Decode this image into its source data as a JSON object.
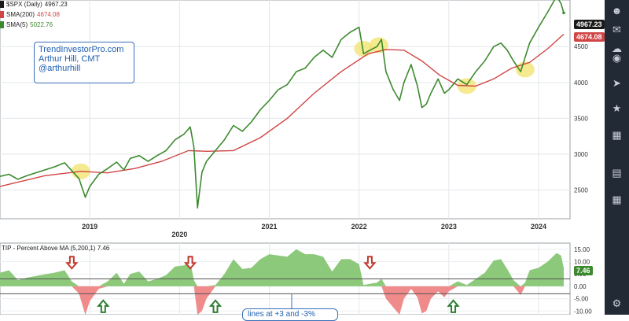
{
  "legend": {
    "price": {
      "label": "$SPX (Daily)",
      "value": "4967.23",
      "color": "#1a1a1a"
    },
    "sma200": {
      "label": "SMA(200)",
      "value": "4674.08",
      "color": "#d04545"
    },
    "sma5": {
      "label": "SMA(5)",
      "value": "5022.76",
      "color": "#3c8a2e"
    }
  },
  "watermark": {
    "line1": "TrendInvestorPro.com",
    "line2": "Arthur Hill, CMT",
    "line3": "@arthurhill"
  },
  "badges": {
    "price": "4967.23",
    "sma200": "4674.08",
    "indicator": "7.46"
  },
  "indicator": {
    "title": "TIP - Percent Above MA (5,200,1)",
    "value": "7.46",
    "annotation": "lines at +3 and -3%"
  },
  "colors": {
    "price_line": "#3c8a2e",
    "sma200_line": "#d04545",
    "positive_fill": "#8cc97a",
    "negative_fill": "#f08b8b",
    "highlight": "#f2e36b",
    "down_arrow": "#c0392b",
    "up_arrow": "#2e7d32",
    "sidebar": "#222a36"
  },
  "sidebar_icons": [
    "user-icon",
    "notification-icon",
    "cloud-icon",
    "globe-icon",
    "rocket-icon",
    "trophy-icon",
    "calendar-icon",
    "document-icon",
    "grid-icon",
    "gear-icon"
  ],
  "chart_data": [
    {
      "type": "line",
      "title": "$SPX (Daily)",
      "x_ticks": [
        "2019",
        "2020",
        "2021",
        "2022",
        "2023",
        "2024"
      ],
      "y_ticks": [
        2500,
        3000,
        3500,
        4000,
        4500
      ],
      "ylim": [
        2100,
        5150
      ],
      "xlim": [
        2018.0,
        2024.35
      ],
      "grid": true,
      "legend_position": "top-left",
      "series": [
        {
          "name": "$SPX (Daily)",
          "x": [
            2018.0,
            2018.1,
            2018.2,
            2018.3,
            2018.45,
            2018.6,
            2018.72,
            2018.8,
            2018.88,
            2018.95,
            2019.0,
            2019.1,
            2019.2,
            2019.3,
            2019.38,
            2019.45,
            2019.55,
            2019.65,
            2019.75,
            2019.85,
            2019.95,
            2020.05,
            2020.12,
            2020.16,
            2020.2,
            2020.25,
            2020.3,
            2020.4,
            2020.5,
            2020.6,
            2020.7,
            2020.8,
            2020.9,
            2021.0,
            2021.1,
            2021.2,
            2021.3,
            2021.4,
            2021.5,
            2021.6,
            2021.7,
            2021.8,
            2021.9,
            2022.0,
            2022.05,
            2022.12,
            2022.2,
            2022.25,
            2022.3,
            2022.38,
            2022.45,
            2022.5,
            2022.58,
            2022.65,
            2022.7,
            2022.75,
            2022.8,
            2022.88,
            2022.95,
            2023.0,
            2023.1,
            2023.2,
            2023.3,
            2023.4,
            2023.5,
            2023.58,
            2023.65,
            2023.72,
            2023.8,
            2023.85,
            2023.9,
            2024.0,
            2024.1,
            2024.2,
            2024.25,
            2024.28
          ],
          "values": [
            2690,
            2720,
            2650,
            2700,
            2760,
            2820,
            2880,
            2770,
            2660,
            2400,
            2550,
            2720,
            2800,
            2890,
            2780,
            2940,
            2980,
            2900,
            2980,
            3050,
            3200,
            3280,
            3380,
            3100,
            2250,
            2750,
            2900,
            3050,
            3200,
            3400,
            3320,
            3450,
            3620,
            3750,
            3900,
            3970,
            4150,
            4200,
            4350,
            4450,
            4350,
            4600,
            4700,
            4770,
            4400,
            4450,
            4500,
            4600,
            4150,
            3900,
            3750,
            4000,
            4250,
            3950,
            3650,
            3700,
            3850,
            4050,
            3850,
            3900,
            4050,
            3970,
            4150,
            4300,
            4500,
            4550,
            4450,
            4300,
            4150,
            4350,
            4550,
            4770,
            4980,
            5200,
            5100,
            4970
          ]
        },
        {
          "name": "SMA(200)",
          "x": [
            2018.0,
            2018.5,
            2018.9,
            2019.2,
            2019.5,
            2019.8,
            2020.1,
            2020.3,
            2020.6,
            2020.9,
            2021.2,
            2021.5,
            2021.8,
            2022.1,
            2022.3,
            2022.5,
            2022.7,
            2022.9,
            2023.1,
            2023.3,
            2023.5,
            2023.7,
            2023.9,
            2024.1,
            2024.28
          ],
          "values": [
            2550,
            2700,
            2760,
            2740,
            2800,
            2900,
            3050,
            3040,
            3050,
            3230,
            3500,
            3850,
            4150,
            4400,
            4460,
            4450,
            4300,
            4100,
            3960,
            3950,
            4050,
            4200,
            4280,
            4470,
            4674
          ]
        }
      ],
      "highlights": [
        {
          "x": 2018.9,
          "y": 2760
        },
        {
          "x": 2022.05,
          "y": 4470
        },
        {
          "x": 2022.22,
          "y": 4520
        },
        {
          "x": 2023.2,
          "y": 3950
        },
        {
          "x": 2023.85,
          "y": 4180
        }
      ]
    },
    {
      "type": "area",
      "title": "TIP - Percent Above MA (5,200,1)",
      "y_ticks": [
        15,
        10,
        5,
        0,
        -5,
        -10
      ],
      "ylim": [
        -11.5,
        17.5
      ],
      "xlim": [
        2018.0,
        2024.35
      ],
      "reference_lines": [
        3,
        -3
      ],
      "x": [
        2018.0,
        2018.1,
        2018.2,
        2018.3,
        2018.45,
        2018.6,
        2018.72,
        2018.8,
        2018.88,
        2018.95,
        2019.0,
        2019.1,
        2019.2,
        2019.3,
        2019.38,
        2019.45,
        2019.55,
        2019.65,
        2019.75,
        2019.85,
        2019.95,
        2020.05,
        2020.12,
        2020.16,
        2020.2,
        2020.25,
        2020.3,
        2020.4,
        2020.5,
        2020.6,
        2020.7,
        2020.8,
        2020.9,
        2021.0,
        2021.1,
        2021.2,
        2021.3,
        2021.4,
        2021.5,
        2021.6,
        2021.7,
        2021.8,
        2021.9,
        2022.0,
        2022.05,
        2022.12,
        2022.2,
        2022.25,
        2022.3,
        2022.38,
        2022.45,
        2022.5,
        2022.58,
        2022.65,
        2022.7,
        2022.75,
        2022.8,
        2022.88,
        2022.95,
        2023.0,
        2023.1,
        2023.2,
        2023.3,
        2023.4,
        2023.5,
        2023.58,
        2023.65,
        2023.72,
        2023.8,
        2023.85,
        2023.9,
        2024.0,
        2024.1,
        2024.2,
        2024.25,
        2024.28
      ],
      "values": [
        5.5,
        6.5,
        2.5,
        3.5,
        4.5,
        5.5,
        6.5,
        2.0,
        -3.0,
        -12.0,
        -6.0,
        -1.0,
        2.0,
        5.5,
        1.0,
        5.0,
        6.0,
        2.0,
        3.0,
        4.5,
        8.0,
        8.5,
        10.0,
        2.5,
        -28.0,
        -10.0,
        -5.0,
        0.5,
        5.0,
        11.0,
        7.0,
        7.5,
        11.0,
        13.0,
        12.5,
        12.0,
        15.0,
        13.0,
        13.0,
        12.0,
        6.0,
        11.0,
        11.0,
        9.0,
        0.5,
        1.0,
        1.5,
        3.0,
        -5.0,
        -8.5,
        -12.0,
        -5.0,
        -1.0,
        -4.5,
        -11.0,
        -10.0,
        -5.0,
        -2.0,
        -4.5,
        -2.0,
        2.0,
        0.5,
        3.0,
        5.5,
        10.5,
        11.0,
        7.0,
        2.5,
        -3.5,
        1.5,
        6.5,
        7.5,
        10.0,
        13.5,
        12.5,
        7.46
      ],
      "signals": [
        {
          "type": "down",
          "x": 2018.8
        },
        {
          "type": "up",
          "x": 2019.15
        },
        {
          "type": "down",
          "x": 2020.12
        },
        {
          "type": "up",
          "x": 2020.4
        },
        {
          "type": "down",
          "x": 2022.12
        },
        {
          "type": "up",
          "x": 2023.05
        }
      ]
    }
  ]
}
